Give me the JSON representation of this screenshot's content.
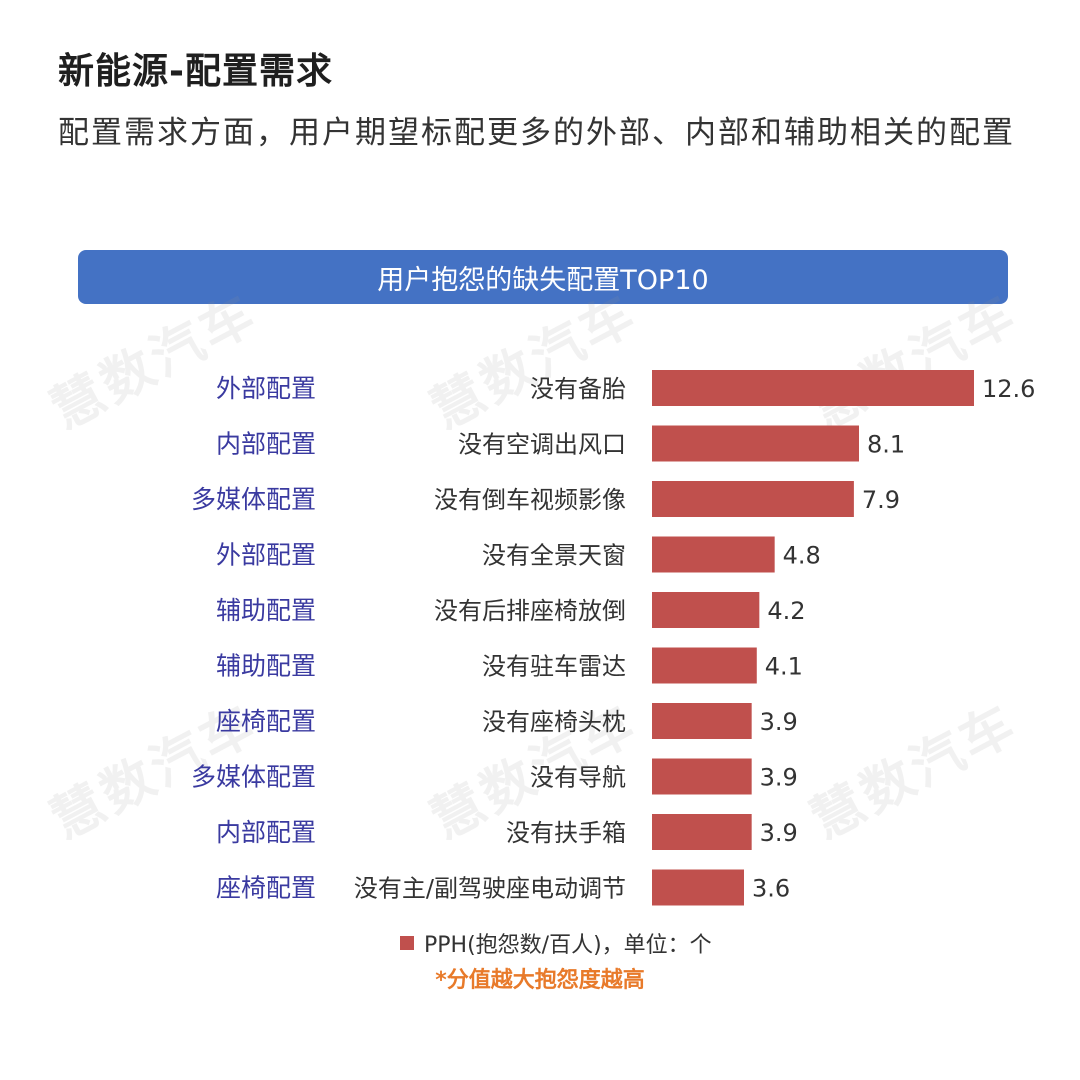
{
  "header": {
    "title": "新能源-配置需求",
    "subtitle": "配置需求方面，用户期望标配更多的外部、内部和辅助相关的配置"
  },
  "banner": {
    "text": "用户抱怨的缺失配置TOP10"
  },
  "watermark": {
    "text": "慧数汽车"
  },
  "chart_data": {
    "type": "bar",
    "orientation": "horizontal",
    "title": "用户抱怨的缺失配置TOP10",
    "groups": [
      "外部配置",
      "内部配置",
      "多媒体配置",
      "外部配置",
      "辅助配置",
      "辅助配置",
      "座椅配置",
      "多媒体配置",
      "内部配置",
      "座椅配置"
    ],
    "categories": [
      "没有备胎",
      "没有空调出风口",
      "没有倒车视频影像",
      "没有全景天窗",
      "没有后排座椅放倒",
      "没有驻车雷达",
      "没有座椅头枕",
      "没有导航",
      "没有扶手箱",
      "没有主/副驾驶座电动调节"
    ],
    "series": [
      {
        "name": "PPH(抱怨数/百人)，单位：个",
        "values": [
          12.6,
          8.1,
          7.9,
          4.8,
          4.2,
          4.1,
          3.9,
          3.9,
          3.9,
          3.6
        ]
      }
    ],
    "xlim": [
      0,
      12.6
    ],
    "grid": false,
    "legend_position": "bottom",
    "colors": {
      "bar": "#c0504d",
      "group_label": "#3a3aa0",
      "category_label": "#333333"
    }
  },
  "legend": {
    "label": "PPH(抱怨数/百人)，单位：个"
  },
  "note": {
    "text": "*分值越大抱怨度越高"
  }
}
